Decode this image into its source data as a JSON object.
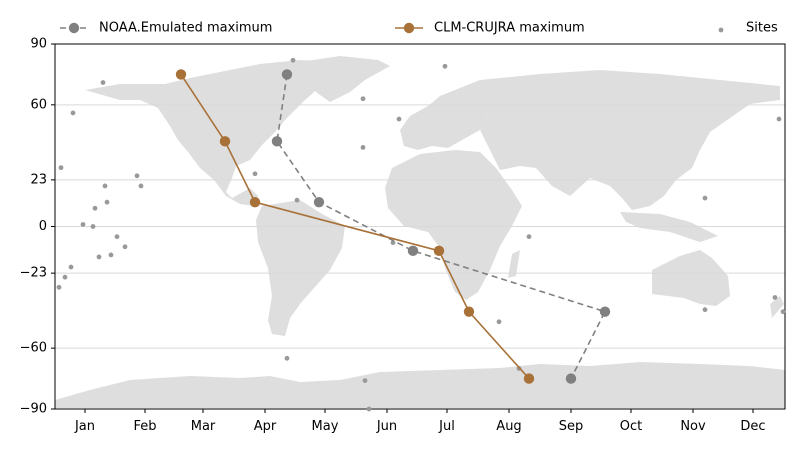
{
  "chart_data": {
    "type": "scatter",
    "title": "",
    "xlabel": "",
    "ylabel": "",
    "x_ticks": [
      {
        "label": "Jan",
        "value": 15
      },
      {
        "label": "Feb",
        "value": 45
      },
      {
        "label": "Mar",
        "value": 74
      },
      {
        "label": "Apr",
        "value": 105
      },
      {
        "label": "May",
        "value": 135
      },
      {
        "label": "Jun",
        "value": 166
      },
      {
        "label": "Jul",
        "value": 196
      },
      {
        "label": "Aug",
        "value": 227
      },
      {
        "label": "Sep",
        "value": 258
      },
      {
        "label": "Oct",
        "value": 288
      },
      {
        "label": "Nov",
        "value": 319
      },
      {
        "label": "Dec",
        "value": 349
      }
    ],
    "xlim": [
      0,
      365
    ],
    "ylim": [
      -90,
      90
    ],
    "y_ticks": [
      {
        "label": "90",
        "value": 90
      },
      {
        "label": "60",
        "value": 60
      },
      {
        "label": "23",
        "value": 23
      },
      {
        "label": "0",
        "value": 0
      },
      {
        "label": "−23",
        "value": -23
      },
      {
        "label": "−60",
        "value": -60
      },
      {
        "label": "−90",
        "value": -90
      }
    ],
    "grid_lines": [
      60,
      23,
      0,
      -23,
      -60
    ],
    "grid": true,
    "background": "world-map",
    "legend_position": "top",
    "series": [
      {
        "name": "NOAA.Emulated maximum",
        "color": "#808080",
        "line_style": "dashed",
        "marker": "circle",
        "x": [
          116,
          111,
          132,
          179,
          275,
          258
        ],
        "y": [
          75,
          42,
          12,
          -12,
          -42,
          -75
        ]
      },
      {
        "name": "CLM-CRUJRA maximum",
        "color": "#a87138",
        "line_style": "solid",
        "marker": "circle",
        "x": [
          63,
          85,
          100,
          192,
          207,
          237
        ],
        "y": [
          75,
          42,
          12,
          -12,
          -42,
          -75
        ]
      },
      {
        "name": "Sites",
        "color": "#999999",
        "line_style": "none",
        "marker": "small-dot",
        "x": [
          119,
          24,
          9,
          3,
          41,
          43,
          25,
          26,
          20,
          14,
          19,
          31,
          35,
          28,
          22,
          8,
          5,
          2,
          154,
          154,
          172,
          100,
          121,
          195,
          169,
          237,
          116,
          232,
          222,
          155,
          157,
          325,
          362,
          325,
          364,
          360
        ],
        "y": [
          82,
          71,
          56,
          29,
          25,
          20,
          20,
          12,
          9,
          1,
          0,
          -5,
          -10,
          -14,
          -15,
          -20,
          -25,
          -30,
          39,
          63,
          53,
          26,
          13,
          79,
          -8,
          -5,
          -65,
          -70,
          -47,
          -76,
          -90,
          14,
          53,
          -41,
          -42,
          -35
        ]
      }
    ]
  }
}
